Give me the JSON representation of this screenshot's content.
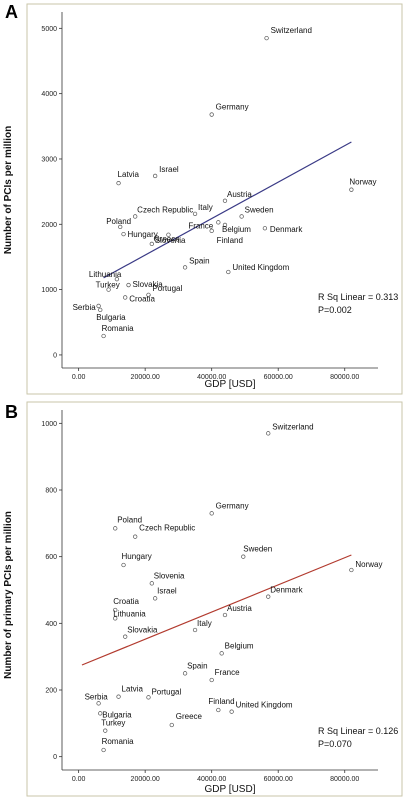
{
  "chart_data": [
    {
      "panel": "A",
      "type": "scatter",
      "xlabel": "GDP [USD]",
      "ylabel": "Number of PCIs per million",
      "xlim": [
        -5000,
        90000
      ],
      "ylim": [
        -200,
        5250
      ],
      "xticks": [
        0,
        20000,
        40000,
        60000,
        80000
      ],
      "xtick_labels": [
        "0.00",
        "20000.00",
        "40000.00",
        "60000.00",
        "80000.00"
      ],
      "yticks": [
        0,
        1000,
        2000,
        3000,
        4000,
        5000
      ],
      "ytick_labels": [
        "0",
        "1000",
        "2000",
        "3000",
        "4000",
        "5000"
      ],
      "fit_line": {
        "x": [
          7500,
          82000
        ],
        "y": [
          1180,
          3260
        ],
        "color": "#3a3a86"
      },
      "annotation": {
        "r2_label": "R Sq Linear = 0.313",
        "p_label": "P=0.002"
      },
      "points": [
        {
          "label": "Switzerland",
          "x": 56500,
          "y": 4850
        },
        {
          "label": "Germany",
          "x": 40000,
          "y": 3680
        },
        {
          "label": "Israel",
          "x": 23000,
          "y": 2740
        },
        {
          "label": "Latvia",
          "x": 12000,
          "y": 2630
        },
        {
          "label": "Norway",
          "x": 82000,
          "y": 2530
        },
        {
          "label": "Austria",
          "x": 44000,
          "y": 2360
        },
        {
          "label": "Italy",
          "x": 35000,
          "y": 2160
        },
        {
          "label": "Czech Republic",
          "x": 17000,
          "y": 2120
        },
        {
          "label": "Sweden",
          "x": 49000,
          "y": 2120
        },
        {
          "label": "Poland",
          "x": 12500,
          "y": 1960
        },
        {
          "label": "France",
          "x": 42000,
          "y": 2030
        },
        {
          "label": "Belgium",
          "x": 44000,
          "y": 1990
        },
        {
          "label": "Denmark",
          "x": 56000,
          "y": 1940
        },
        {
          "label": "Finland",
          "x": 40000,
          "y": 1900
        },
        {
          "label": "Greece",
          "x": 27000,
          "y": 1840
        },
        {
          "label": "Hungary",
          "x": 13500,
          "y": 1850
        },
        {
          "label": "Slovenia",
          "x": 22000,
          "y": 1700
        },
        {
          "label": "Spain",
          "x": 32000,
          "y": 1340
        },
        {
          "label": "United Kingdom",
          "x": 45000,
          "y": 1270
        },
        {
          "label": "Lithuania",
          "x": 11500,
          "y": 1160
        },
        {
          "label": "Slovakia",
          "x": 15000,
          "y": 1070
        },
        {
          "label": "Turkey",
          "x": 9000,
          "y": 1000
        },
        {
          "label": "Portugal",
          "x": 21000,
          "y": 920
        },
        {
          "label": "Croatia",
          "x": 14000,
          "y": 880
        },
        {
          "label": "Serbia",
          "x": 6000,
          "y": 750
        },
        {
          "label": "Bulgaria",
          "x": 6500,
          "y": 690
        },
        {
          "label": "Romania",
          "x": 7500,
          "y": 290
        }
      ]
    },
    {
      "panel": "B",
      "type": "scatter",
      "xlabel": "GDP [USD]",
      "ylabel": "Number of primary PCIs per million",
      "xlim": [
        -5000,
        90000
      ],
      "ylim": [
        -40,
        1040
      ],
      "xticks": [
        0,
        20000,
        40000,
        60000,
        80000
      ],
      "xtick_labels": [
        "0.00",
        "20000.00",
        "40000.00",
        "60000.00",
        "80000.00"
      ],
      "yticks": [
        0,
        200,
        400,
        600,
        800,
        1000
      ],
      "ytick_labels": [
        "0",
        "200",
        "400",
        "600",
        "800",
        "1000"
      ],
      "fit_line": {
        "x": [
          1000,
          82000
        ],
        "y": [
          275,
          605
        ],
        "color": "#b23a2e"
      },
      "annotation": {
        "r2_label": "R Sq Linear = 0.126",
        "p_label": "P=0.070"
      },
      "points": [
        {
          "label": "Switzerland",
          "x": 57000,
          "y": 970
        },
        {
          "label": "Germany",
          "x": 40000,
          "y": 730
        },
        {
          "label": "Poland",
          "x": 11000,
          "y": 685
        },
        {
          "label": "Czech Republic",
          "x": 17000,
          "y": 660
        },
        {
          "label": "Sweden",
          "x": 49500,
          "y": 600
        },
        {
          "label": "Hungary",
          "x": 13500,
          "y": 575
        },
        {
          "label": "Norway",
          "x": 82000,
          "y": 560
        },
        {
          "label": "Slovenia",
          "x": 22000,
          "y": 520
        },
        {
          "label": "Denmark",
          "x": 57000,
          "y": 480
        },
        {
          "label": "Israel",
          "x": 23000,
          "y": 475
        },
        {
          "label": "Croatia",
          "x": 11000,
          "y": 440
        },
        {
          "label": "Austria",
          "x": 44000,
          "y": 425
        },
        {
          "label": "Lithuania",
          "x": 11000,
          "y": 415
        },
        {
          "label": "Italy",
          "x": 35000,
          "y": 380
        },
        {
          "label": "Slovakia",
          "x": 14000,
          "y": 360
        },
        {
          "label": "Belgium",
          "x": 43000,
          "y": 310
        },
        {
          "label": "Spain",
          "x": 32000,
          "y": 250
        },
        {
          "label": "France",
          "x": 40000,
          "y": 230
        },
        {
          "label": "Latvia",
          "x": 12000,
          "y": 180
        },
        {
          "label": "Portugal",
          "x": 21000,
          "y": 178
        },
        {
          "label": "Serbia",
          "x": 6000,
          "y": 160
        },
        {
          "label": "Bulgaria",
          "x": 6500,
          "y": 130
        },
        {
          "label": "Finland",
          "x": 42000,
          "y": 140
        },
        {
          "label": "United Kingdom",
          "x": 46000,
          "y": 135
        },
        {
          "label": "Greece",
          "x": 28000,
          "y": 95
        },
        {
          "label": "Turkey",
          "x": 8000,
          "y": 78
        },
        {
          "label": "Romania",
          "x": 7500,
          "y": 20
        }
      ]
    }
  ],
  "panels": [
    {
      "letter": "A"
    },
    {
      "letter": "B"
    }
  ],
  "colors": {
    "frame": "#c9c6aa",
    "axis": "#333333",
    "point": "#555555"
  }
}
